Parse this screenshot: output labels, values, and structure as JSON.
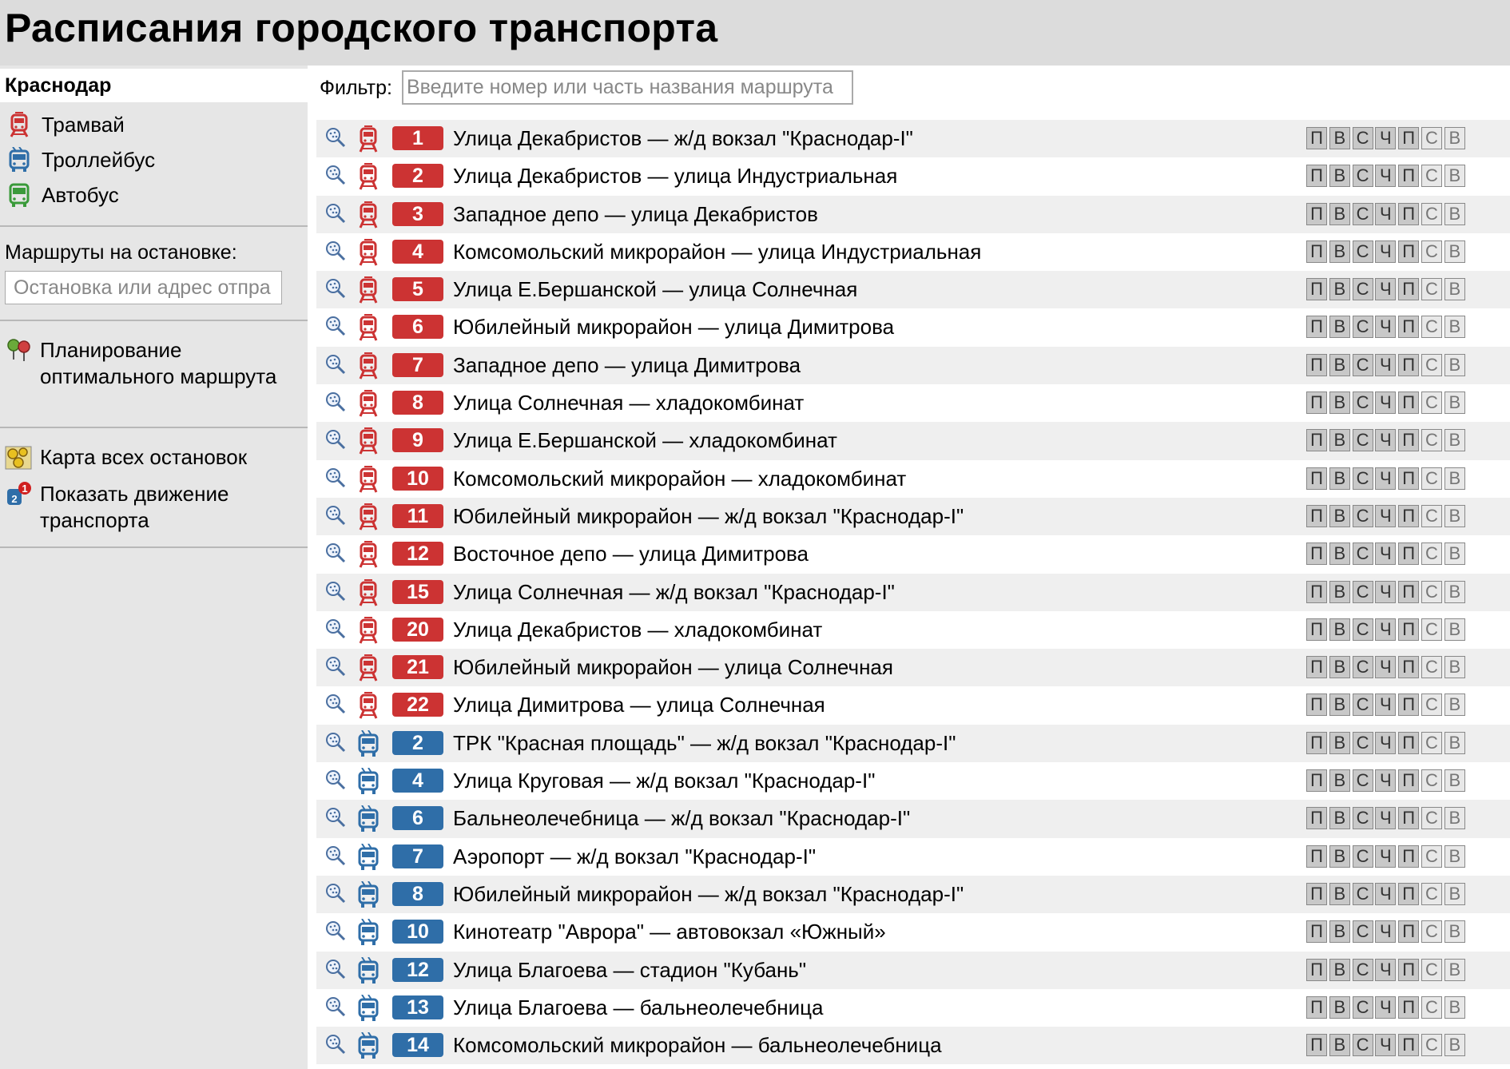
{
  "header": {
    "title": "Расписания городского транспорта"
  },
  "sidebar": {
    "city": "Краснодар",
    "modes": [
      {
        "label": "Трамвай",
        "icon": "tram-icon",
        "color": "#cc3333"
      },
      {
        "label": "Троллейбус",
        "icon": "trolleybus-icon",
        "color": "#2f6ea8"
      },
      {
        "label": "Автобус",
        "icon": "bus-icon",
        "color": "#3a9a3a"
      }
    ],
    "stop_label": "Маршруты на остановке:",
    "stop_placeholder": "Остановка или адрес отпра",
    "planner_label": "Планирование оптимального маршрута",
    "map_label": "Карта всех остановок",
    "movement_label": "Показать движение транспорта"
  },
  "filter": {
    "label": "Фильтр:",
    "placeholder": "Введите номер или часть названия маршрута"
  },
  "days": [
    "П",
    "В",
    "С",
    "Ч",
    "П",
    "С",
    "В"
  ],
  "routes": [
    {
      "type": "tram",
      "num": "1",
      "name": "Улица Декабристов — ж/д вокзал \"Краснодар-I\""
    },
    {
      "type": "tram",
      "num": "2",
      "name": "Улица Декабристов — улица Индустриальная"
    },
    {
      "type": "tram",
      "num": "3",
      "name": "Западное депо — улица Декабристов"
    },
    {
      "type": "tram",
      "num": "4",
      "name": "Комсомольский микрорайон — улица Индустриальная"
    },
    {
      "type": "tram",
      "num": "5",
      "name": "Улица Е.Бершанской — улица Солнечная"
    },
    {
      "type": "tram",
      "num": "6",
      "name": "Юбилейный микрорайон — улица Димитрова"
    },
    {
      "type": "tram",
      "num": "7",
      "name": "Западное депо — улица Димитрова"
    },
    {
      "type": "tram",
      "num": "8",
      "name": "Улица Солнечная — хладокомбинат"
    },
    {
      "type": "tram",
      "num": "9",
      "name": "Улица Е.Бершанской — хладокомбинат"
    },
    {
      "type": "tram",
      "num": "10",
      "name": "Комсомольский микрорайон — хладокомбинат"
    },
    {
      "type": "tram",
      "num": "11",
      "name": "Юбилейный микрорайон — ж/д вокзал \"Краснодар-I\""
    },
    {
      "type": "tram",
      "num": "12",
      "name": "Восточное депо — улица Димитрова"
    },
    {
      "type": "tram",
      "num": "15",
      "name": "Улица Солнечная — ж/д вокзал \"Краснодар-I\""
    },
    {
      "type": "tram",
      "num": "20",
      "name": "Улица Декабристов — хладокомбинат"
    },
    {
      "type": "tram",
      "num": "21",
      "name": "Юбилейный микрорайон — улица Солнечная"
    },
    {
      "type": "tram",
      "num": "22",
      "name": "Улица Димитрова — улица Солнечная"
    },
    {
      "type": "trol",
      "num": "2",
      "name": "ТРК \"Красная площадь\" — ж/д вокзал \"Краснодар-I\""
    },
    {
      "type": "trol",
      "num": "4",
      "name": "Улица Круговая — ж/д вокзал \"Краснодар-I\""
    },
    {
      "type": "trol",
      "num": "6",
      "name": "Бальнеолечебница — ж/д вокзал \"Краснодар-I\""
    },
    {
      "type": "trol",
      "num": "7",
      "name": "Аэропорт — ж/д вокзал \"Краснодар-I\""
    },
    {
      "type": "trol",
      "num": "8",
      "name": "Юбилейный микрорайон — ж/д вокзал \"Краснодар-I\""
    },
    {
      "type": "trol",
      "num": "10",
      "name": "Кинотеатр \"Аврора\" — автовокзал «Южный»"
    },
    {
      "type": "trol",
      "num": "12",
      "name": "Улица Благоева — стадион \"Кубань\""
    },
    {
      "type": "trol",
      "num": "13",
      "name": "Улица Благоева — бальнеолечебница"
    },
    {
      "type": "trol",
      "num": "14",
      "name": "Комсомольский микрорайон — бальнеолечебница"
    }
  ]
}
